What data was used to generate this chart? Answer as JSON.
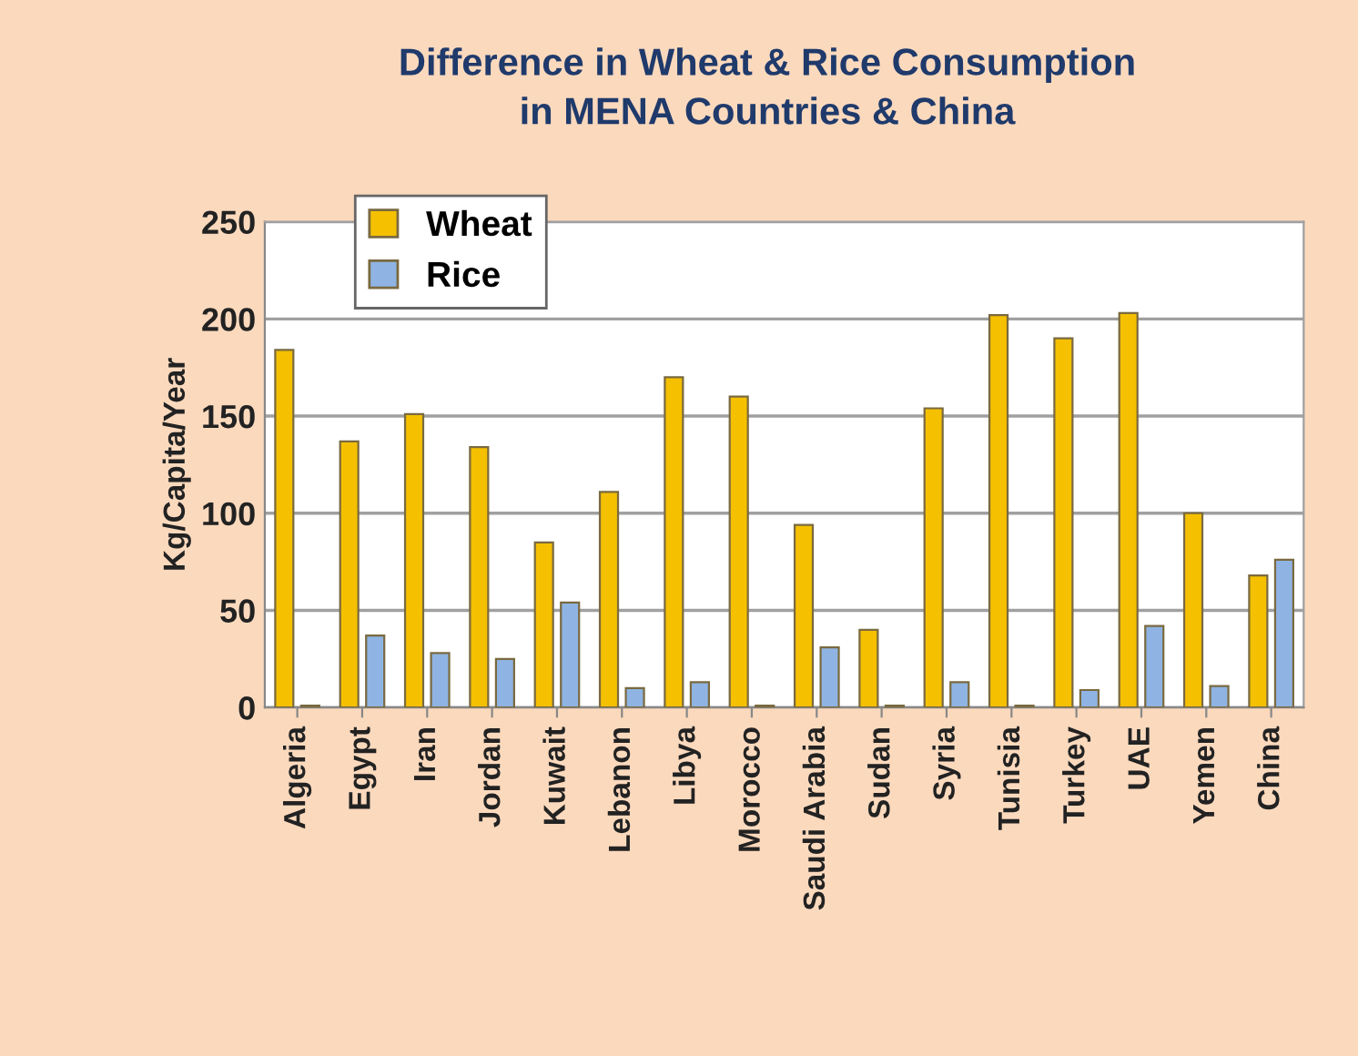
{
  "chart_data": {
    "type": "bar",
    "title": "Difference in Wheat & Rice Consumption\nin MENA Countries & China",
    "ylabel": "Kg/Capita/Year",
    "categories": [
      "Algeria",
      "Egypt",
      "Iran",
      "Jordan",
      "Kuwait",
      "Lebanon",
      "Libya",
      "Morocco",
      "Saudi Arabia",
      "Sudan",
      "Syria",
      "Tunisia",
      "Turkey",
      "UAE",
      "Yemen",
      "China"
    ],
    "series": [
      {
        "name": "Wheat",
        "color": "#f5c000",
        "values": [
          184,
          137,
          151,
          134,
          85,
          111,
          170,
          160,
          94,
          40,
          154,
          202,
          190,
          203,
          100,
          68
        ]
      },
      {
        "name": "Rice",
        "color": "#8fb4e3",
        "values": [
          1,
          37,
          28,
          25,
          54,
          10,
          13,
          1,
          31,
          1,
          13,
          1,
          9,
          42,
          11,
          76
        ]
      }
    ],
    "ylim": [
      0,
      250
    ],
    "yticks": [
      0,
      50,
      100,
      150,
      200,
      250
    ],
    "grid": "y",
    "legend": "top left"
  }
}
